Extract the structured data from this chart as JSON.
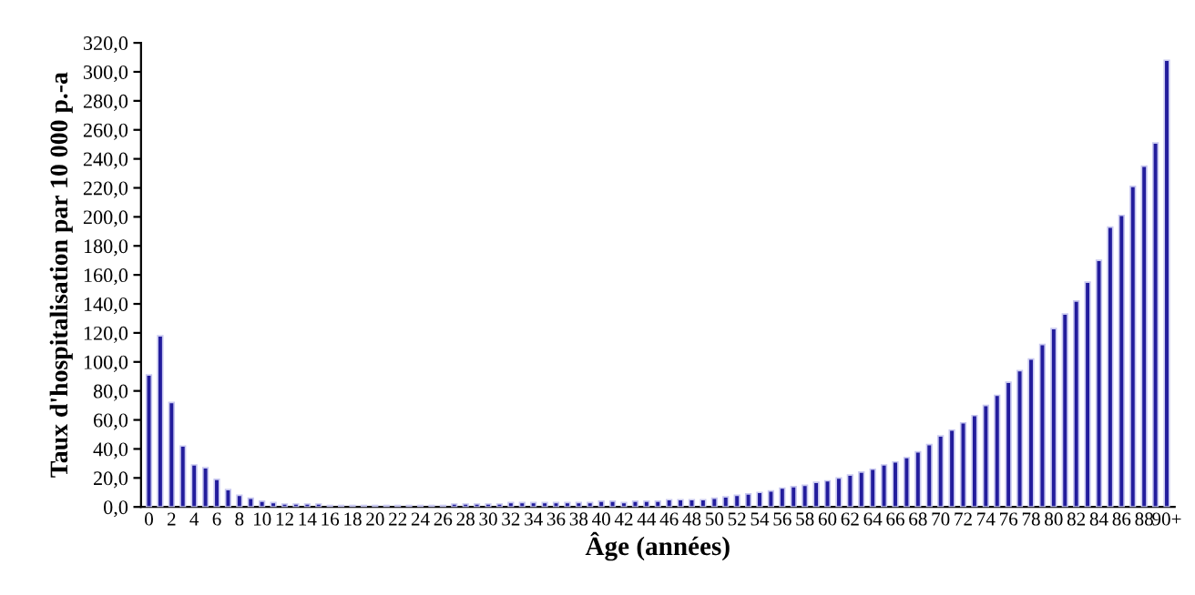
{
  "chart_data": {
    "type": "bar",
    "xlabel": "Âge (années)",
    "ylabel": "Taux d'hospitalisation par 10 000 p.-a",
    "categories": [
      "0",
      null,
      "2",
      null,
      "4",
      null,
      "6",
      null,
      "8",
      null,
      "10",
      null,
      "12",
      null,
      "14",
      null,
      "16",
      null,
      "18",
      null,
      "20",
      null,
      "22",
      null,
      "24",
      null,
      "26",
      null,
      "28",
      null,
      "30",
      null,
      "32",
      null,
      "34",
      null,
      "36",
      null,
      "38",
      null,
      "40",
      null,
      "42",
      null,
      "44",
      null,
      "46",
      null,
      "48",
      null,
      "50",
      null,
      "52",
      null,
      "54",
      null,
      "56",
      null,
      "58",
      null,
      "60",
      null,
      "62",
      null,
      "64",
      null,
      "66",
      null,
      "68",
      null,
      "70",
      null,
      "72",
      null,
      "74",
      null,
      "76",
      null,
      "78",
      null,
      "80",
      null,
      "82",
      null,
      "84",
      null,
      "86",
      null,
      "88",
      null,
      "90+"
    ],
    "values": [
      91,
      118,
      72,
      42,
      29,
      27,
      19,
      12,
      8,
      6,
      4,
      3,
      2,
      2,
      2,
      2,
      1,
      1,
      1,
      1,
      1,
      1,
      1,
      1,
      1,
      1,
      1,
      2,
      2,
      2,
      2,
      2,
      3,
      3,
      3,
      3,
      3,
      3,
      3,
      3,
      4,
      4,
      3,
      4,
      4,
      4,
      5,
      5,
      5,
      5,
      6,
      7,
      8,
      9,
      10,
      11,
      13,
      14,
      15,
      17,
      18,
      20,
      22,
      24,
      26,
      29,
      31,
      34,
      38,
      43,
      49,
      53,
      58,
      63,
      70,
      77,
      86,
      94,
      102,
      112,
      123,
      133,
      142,
      155,
      170,
      193,
      201,
      221,
      235,
      251,
      308
    ],
    "color": "#221c9c",
    "ylim": [
      0,
      320
    ],
    "yticks": [
      {
        "value": 0,
        "label": "0,0"
      },
      {
        "value": 20,
        "label": "20,0"
      },
      {
        "value": 40,
        "label": "40,0"
      },
      {
        "value": 60,
        "label": "60,0"
      },
      {
        "value": 80,
        "label": "80,0"
      },
      {
        "value": 100,
        "label": "100,0"
      },
      {
        "value": 120,
        "label": "120,0"
      },
      {
        "value": 140,
        "label": "140,0"
      },
      {
        "value": 160,
        "label": "160,0"
      },
      {
        "value": 180,
        "label": "180,0"
      },
      {
        "value": 200,
        "label": "200,0"
      },
      {
        "value": 220,
        "label": "220,0"
      },
      {
        "value": 240,
        "label": "240,0"
      },
      {
        "value": 260,
        "label": "260,0"
      },
      {
        "value": 280,
        "label": "280,0"
      },
      {
        "value": 300,
        "label": "300,0"
      },
      {
        "value": 320,
        "label": "320,0"
      }
    ]
  }
}
